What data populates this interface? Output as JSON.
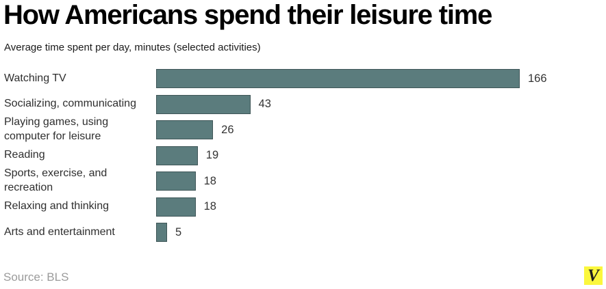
{
  "title": "How Americans spend their leisure time",
  "subtitle": "Average time spent per day, minutes (selected activities)",
  "source": "Source: BLS",
  "logo": {
    "letter": "V",
    "bg_color": "#fbf73d",
    "fg_color": "#1f1f1f"
  },
  "colors": {
    "bar_fill": "#5b7c7d",
    "bar_border": "#3e5557",
    "label_text": "#2e2e2e",
    "value_text": "#333333",
    "source_text": "#9b9b9b",
    "title_text": "#000000"
  },
  "chart_data": {
    "type": "bar",
    "orientation": "horizontal",
    "title": "How Americans spend their leisure time",
    "subtitle": "Average time spent per day, minutes (selected activities)",
    "categories": [
      "Watching TV",
      "Socializing, communicating",
      "Playing games, using\ncomputer for leisure",
      "Reading",
      "Sports, exercise, and\nrecreation",
      "Relaxing and thinking",
      "Arts and entertainment"
    ],
    "values": [
      166,
      43,
      26,
      19,
      18,
      18,
      5
    ],
    "unit": "minutes",
    "xlabel": "",
    "ylabel": "",
    "xlim": [
      0,
      166
    ],
    "grid": false,
    "value_labels_shown": true,
    "legend": "none"
  }
}
